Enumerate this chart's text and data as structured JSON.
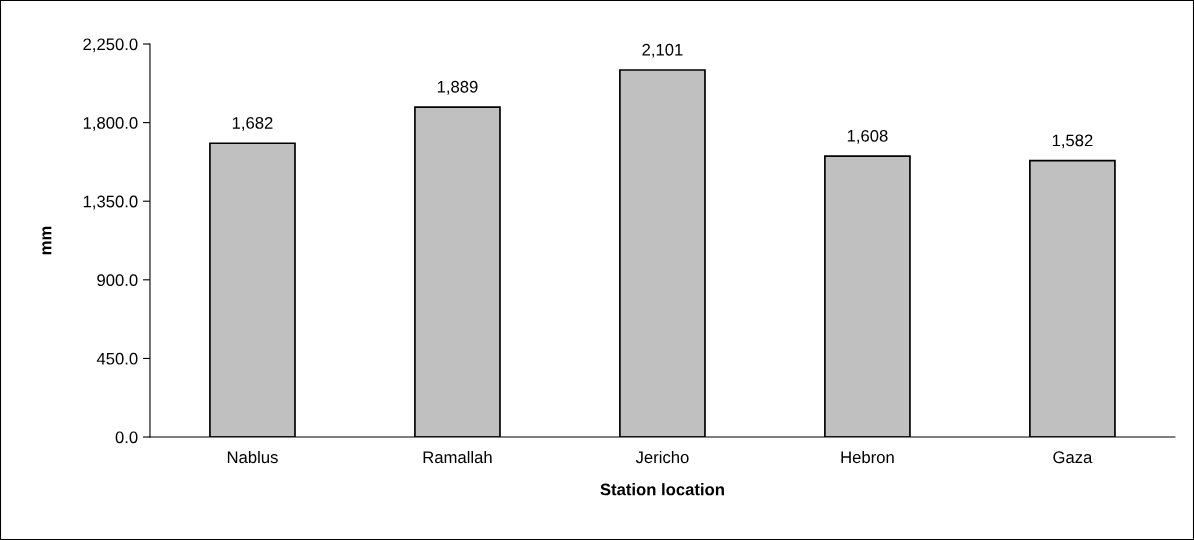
{
  "chart_data": {
    "type": "bar",
    "xlabel": "Station location",
    "ylabel": "mm",
    "categories": [
      "Nablus",
      "Ramallah",
      "Jericho",
      "Hebron",
      "Gaza"
    ],
    "values": [
      1682,
      1889,
      2101,
      1608,
      1582
    ],
    "color": "#c0c0c0",
    "ylim": [
      0,
      2250
    ],
    "yticks": [
      {
        "value": 0,
        "label": "0.0"
      },
      {
        "value": 450,
        "label": "450.0"
      },
      {
        "value": 900,
        "label": "900.0"
      },
      {
        "value": 1350,
        "label": "1,350.0"
      },
      {
        "value": 1800,
        "label": "1,800.0"
      },
      {
        "value": 2250,
        "label": "2,250.0"
      }
    ],
    "value_labels": [
      "1,682",
      "1,889",
      "2,101",
      "1,608",
      "1,582"
    ],
    "grid": false,
    "legend": false
  }
}
